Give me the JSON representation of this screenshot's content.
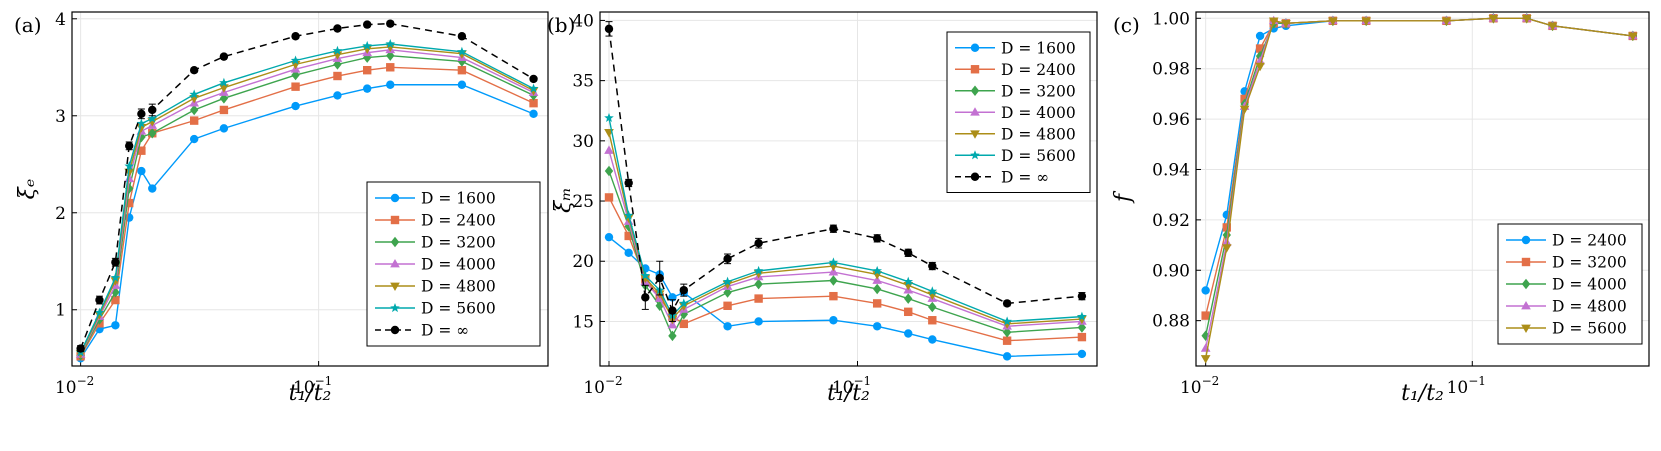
{
  "colors": {
    "D1600": "#009AFA",
    "D2400": "#E36F47",
    "D3200": "#3EA44E",
    "D4000": "#C371D2",
    "D4800": "#AC8E18",
    "D5600": "#00A9AD",
    "Dinf": "#000000",
    "grid": "#E6E6E6",
    "frame": "#000000"
  },
  "chart_data": [
    {
      "type": "line",
      "panel_label": "(a)",
      "xlabel": "t₁/t₂",
      "ylabel": "ξₑ",
      "xscale": "log",
      "xlim": [
        0.0092,
        0.92
      ],
      "ylim": [
        0.42,
        4.07
      ],
      "xticks": [
        {
          "v": 0.01,
          "base": "10",
          "exp": "−2"
        },
        {
          "v": 0.1,
          "base": "10",
          "exp": "−1"
        }
      ],
      "yticks": [
        {
          "v": 1,
          "label": "1"
        },
        {
          "v": 2,
          "label": "2"
        },
        {
          "v": 3,
          "label": "3"
        },
        {
          "v": 4,
          "label": "4"
        }
      ],
      "legend_position": "bottom-right",
      "x": [
        0.01,
        0.012,
        0.014,
        0.016,
        0.018,
        0.02,
        0.03,
        0.04,
        0.08,
        0.12,
        0.16,
        0.2,
        0.4,
        0.8
      ],
      "series": [
        {
          "name": "D = 1600",
          "key": "D1600",
          "marker": "circle",
          "dashed": false,
          "values": [
            0.5,
            0.8,
            0.84,
            1.95,
            2.43,
            2.25,
            2.76,
            2.87,
            3.1,
            3.21,
            3.28,
            3.32,
            3.32,
            3.02
          ]
        },
        {
          "name": "D = 2400",
          "key": "D2400",
          "marker": "square",
          "dashed": false,
          "values": [
            0.52,
            0.86,
            1.1,
            2.1,
            2.64,
            2.82,
            2.95,
            3.06,
            3.3,
            3.41,
            3.47,
            3.5,
            3.47,
            3.13
          ]
        },
        {
          "name": "D = 3200",
          "key": "D3200",
          "marker": "diamond",
          "dashed": false,
          "values": [
            0.53,
            0.9,
            1.18,
            2.25,
            2.78,
            2.82,
            3.06,
            3.18,
            3.42,
            3.53,
            3.6,
            3.62,
            3.56,
            3.21
          ]
        },
        {
          "name": "D = 4000",
          "key": "D4000",
          "marker": "triangle-up",
          "dashed": false,
          "values": [
            0.54,
            0.93,
            1.25,
            2.35,
            2.84,
            2.9,
            3.13,
            3.24,
            3.48,
            3.59,
            3.65,
            3.68,
            3.6,
            3.24
          ]
        },
        {
          "name": "D = 4800",
          "key": "D4800",
          "marker": "triangle-down",
          "dashed": false,
          "values": [
            0.55,
            0.95,
            1.3,
            2.42,
            2.88,
            2.94,
            3.18,
            3.29,
            3.53,
            3.63,
            3.69,
            3.71,
            3.64,
            3.26
          ]
        },
        {
          "name": "D = 5600",
          "key": "D5600",
          "marker": "star",
          "dashed": false,
          "values": [
            0.56,
            0.97,
            1.33,
            2.48,
            2.92,
            2.97,
            3.22,
            3.34,
            3.57,
            3.67,
            3.72,
            3.74,
            3.66,
            3.28
          ]
        },
        {
          "name": "D = ∞",
          "key": "Dinf",
          "marker": "circle",
          "dashed": true,
          "values": [
            0.6,
            1.1,
            1.49,
            2.69,
            3.02,
            3.06,
            3.47,
            3.61,
            3.82,
            3.9,
            3.94,
            3.95,
            3.82,
            3.38
          ],
          "errors": [
            0.03,
            0.04,
            0.04,
            0.04,
            0.05,
            0.06,
            0.02,
            0.02,
            0.02,
            0.02,
            0.02,
            0.02,
            0.02,
            0.02
          ]
        }
      ]
    },
    {
      "type": "line",
      "panel_label": "(b)",
      "xlabel": "t₁/t₂",
      "ylabel": "ξₘ",
      "xscale": "log",
      "xlim": [
        0.0092,
        0.92
      ],
      "ylim": [
        11.3,
        40.7
      ],
      "xticks": [
        {
          "v": 0.01,
          "base": "10",
          "exp": "−2"
        },
        {
          "v": 0.1,
          "base": "10",
          "exp": "−1"
        }
      ],
      "yticks": [
        {
          "v": 15,
          "label": "15"
        },
        {
          "v": 20,
          "label": "20"
        },
        {
          "v": 25,
          "label": "25"
        },
        {
          "v": 30,
          "label": "30"
        },
        {
          "v": 35,
          "label": "35"
        },
        {
          "v": 40,
          "label": "40"
        }
      ],
      "legend_position": "top-right",
      "x": [
        0.01,
        0.012,
        0.014,
        0.016,
        0.018,
        0.02,
        0.03,
        0.04,
        0.08,
        0.12,
        0.16,
        0.2,
        0.4,
        0.8
      ],
      "series": [
        {
          "name": "D = 1600",
          "key": "D1600",
          "marker": "circle",
          "dashed": false,
          "values": [
            22.0,
            20.7,
            19.4,
            18.9,
            17.0,
            17.4,
            14.6,
            15.0,
            15.1,
            14.6,
            14.0,
            13.5,
            12.1,
            12.3
          ]
        },
        {
          "name": "D = 2400",
          "key": "D2400",
          "marker": "square",
          "dashed": false,
          "values": [
            25.3,
            22.1,
            18.5,
            17.0,
            15.4,
            14.8,
            16.3,
            16.9,
            17.1,
            16.5,
            15.8,
            15.1,
            13.4,
            13.7
          ]
        },
        {
          "name": "D = 3200",
          "key": "D3200",
          "marker": "diamond",
          "dashed": false,
          "values": [
            27.5,
            22.9,
            18.0,
            16.3,
            13.8,
            15.6,
            17.4,
            18.1,
            18.4,
            17.7,
            16.9,
            16.2,
            14.1,
            14.5
          ]
        },
        {
          "name": "D = 4000",
          "key": "D4000",
          "marker": "triangle-up",
          "dashed": false,
          "values": [
            29.2,
            23.3,
            18.3,
            16.9,
            14.7,
            16.0,
            17.9,
            18.7,
            19.1,
            18.4,
            17.6,
            16.9,
            14.6,
            15.0
          ]
        },
        {
          "name": "D = 4800",
          "key": "D4800",
          "marker": "triangle-down",
          "dashed": false,
          "values": [
            30.7,
            23.6,
            18.6,
            17.3,
            15.2,
            16.3,
            18.1,
            19.0,
            19.6,
            18.9,
            18.0,
            17.2,
            14.8,
            15.2
          ]
        },
        {
          "name": "D = 5600",
          "key": "D5600",
          "marker": "star",
          "dashed": false,
          "values": [
            31.9,
            23.8,
            18.8,
            17.6,
            15.5,
            16.5,
            18.3,
            19.2,
            19.9,
            19.2,
            18.3,
            17.5,
            15.0,
            15.4
          ]
        },
        {
          "name": "D = ∞",
          "key": "Dinf",
          "marker": "circle",
          "dashed": true,
          "values": [
            39.3,
            26.5,
            17.0,
            18.6,
            15.9,
            17.6,
            20.2,
            21.5,
            22.7,
            21.9,
            20.7,
            19.6,
            16.5,
            17.1
          ],
          "errors": [
            0.6,
            0.3,
            1.0,
            1.4,
            0.9,
            0.5,
            0.4,
            0.4,
            0.3,
            0.3,
            0.3,
            0.3,
            0.2,
            0.3
          ]
        }
      ]
    },
    {
      "type": "line",
      "panel_label": "(c)",
      "xlabel": "t₁/t₂",
      "ylabel": "f",
      "xscale": "log",
      "xlim": [
        0.0092,
        0.46
      ],
      "ylim": [
        0.862,
        1.0025
      ],
      "xticks": [
        {
          "v": 0.01,
          "base": "10",
          "exp": "−2"
        },
        {
          "v": 0.1,
          "base": "10",
          "exp": "−1"
        }
      ],
      "yticks": [
        {
          "v": 0.88,
          "label": "0.88"
        },
        {
          "v": 0.9,
          "label": "0.90"
        },
        {
          "v": 0.92,
          "label": "0.92"
        },
        {
          "v": 0.94,
          "label": "0.94"
        },
        {
          "v": 0.96,
          "label": "0.96"
        },
        {
          "v": 0.98,
          "label": "0.98"
        },
        {
          "v": 1.0,
          "label": "1.00"
        }
      ],
      "legend_position": "bottom-right",
      "x": [
        0.01,
        0.012,
        0.014,
        0.016,
        0.018,
        0.02,
        0.03,
        0.04,
        0.08,
        0.12,
        0.16,
        0.2,
        0.4
      ],
      "series": [
        {
          "name": "D = 2400",
          "key": "D1600",
          "marker": "circle",
          "dashed": false,
          "values": [
            0.892,
            0.922,
            0.971,
            0.993,
            0.996,
            0.997,
            0.999,
            0.999,
            0.999,
            1.0,
            1.0,
            0.997,
            0.993
          ]
        },
        {
          "name": "D = 3200",
          "key": "D2400",
          "marker": "square",
          "dashed": false,
          "values": [
            0.882,
            0.917,
            0.968,
            0.988,
            0.998,
            0.998,
            0.999,
            0.999,
            0.999,
            1.0,
            1.0,
            0.997,
            0.993
          ]
        },
        {
          "name": "D = 4000",
          "key": "D3200",
          "marker": "diamond",
          "dashed": false,
          "values": [
            0.874,
            0.914,
            0.966,
            0.985,
            0.998,
            0.998,
            0.999,
            0.999,
            0.999,
            1.0,
            1.0,
            0.997,
            0.993
          ]
        },
        {
          "name": "D = 4800",
          "key": "D4000",
          "marker": "triangle-up",
          "dashed": false,
          "values": [
            0.869,
            0.911,
            0.965,
            0.983,
            0.999,
            0.998,
            0.999,
            0.999,
            0.999,
            1.0,
            1.0,
            0.997,
            0.993
          ]
        },
        {
          "name": "D = 5600",
          "key": "D4800",
          "marker": "triangle-down",
          "dashed": false,
          "values": [
            0.865,
            0.909,
            0.964,
            0.981,
            0.999,
            0.998,
            0.999,
            0.999,
            0.999,
            1.0,
            1.0,
            0.997,
            0.993
          ]
        }
      ]
    }
  ]
}
